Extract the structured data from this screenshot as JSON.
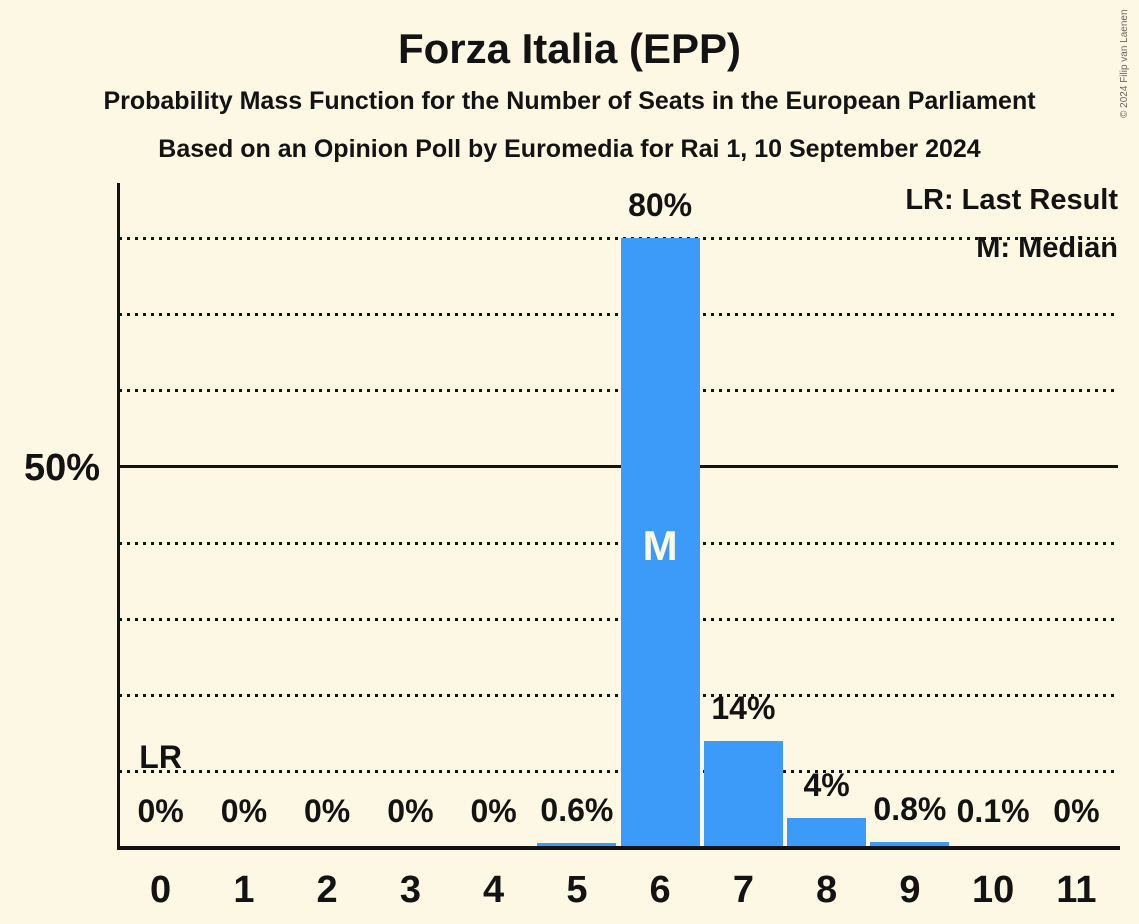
{
  "header": {
    "title": "Forza Italia (EPP)",
    "subtitle_line1": "Probability Mass Function for the Number of Seats in the European Parliament",
    "subtitle_line2": "Based on an Opinion Poll by Euromedia for Rai 1, 10 September 2024"
  },
  "legend": {
    "lr_label": "LR: Last Result",
    "m_label": "M: Median"
  },
  "copyright": "© 2024 Filip van Laenen",
  "colors": {
    "background": "#FCF8E3",
    "bar": "#3C9BF8",
    "text": "#131313",
    "median_text": "#FCF8E3",
    "copyright_text": "#67665F"
  },
  "chart_data": {
    "type": "bar",
    "title": "Forza Italia (EPP)",
    "xlabel": "",
    "ylabel": "",
    "categories": [
      "0",
      "1",
      "2",
      "3",
      "4",
      "5",
      "6",
      "7",
      "8",
      "9",
      "10",
      "11"
    ],
    "values": [
      0,
      0,
      0,
      0,
      0,
      0.6,
      80,
      14,
      4,
      0.8,
      0.1,
      0
    ],
    "bar_labels": [
      "0%",
      "0%",
      "0%",
      "0%",
      "0%",
      "0.6%",
      "80%",
      "14%",
      "4%",
      "0.8%",
      "0.1%",
      "0%"
    ],
    "ylim": [
      0,
      87
    ],
    "y_gridlines_dotted_pct": [
      10,
      20,
      30,
      40,
      60,
      70,
      80
    ],
    "y_line_solid_pct": 50,
    "y_axis_label_text": "50%",
    "grid": "horizontal dotted, solid at 50%",
    "legend_position": "top-right",
    "median_category": "6",
    "median_marker": "M",
    "last_result_category": "0",
    "last_result_marker": "LR"
  }
}
